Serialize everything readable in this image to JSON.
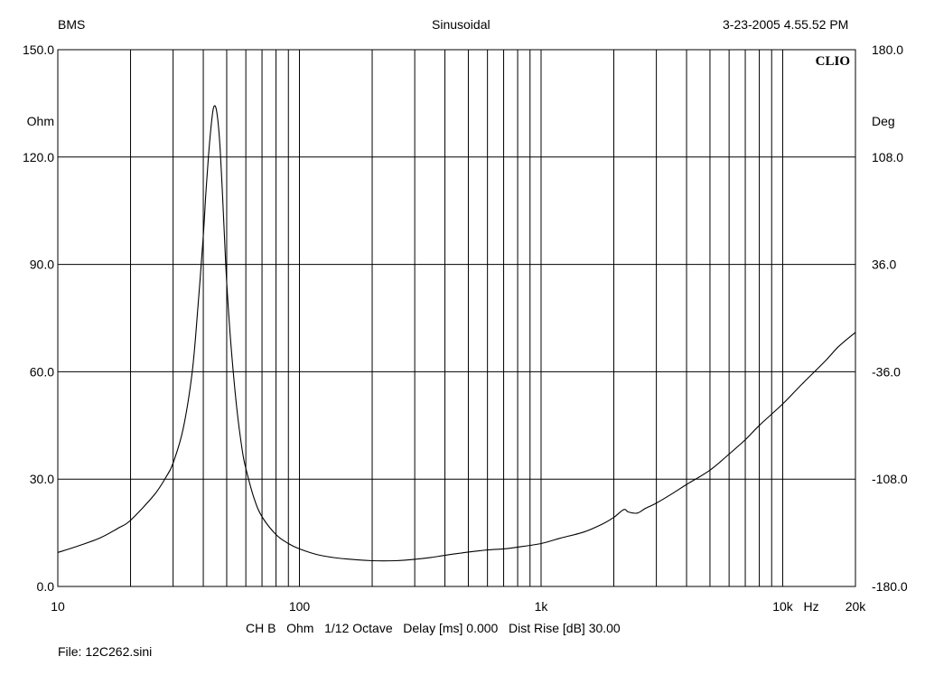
{
  "header": {
    "left": "BMS",
    "center": "Sinusoidal",
    "right": "3-23-2005 4.55.52 PM"
  },
  "footer": {
    "settings": "CH B   Ohm   1/12 Octave   Delay [ms] 0.000   Dist Rise [dB] 30.00",
    "file": "File: 12C262.sini"
  },
  "chart_data": {
    "type": "line",
    "brand": "CLIO",
    "xscale": "log",
    "xlim": [
      10,
      20000
    ],
    "xlabel": "Hz",
    "xticks": [
      {
        "value": 10,
        "label": "10"
      },
      {
        "value": 100,
        "label": "100"
      },
      {
        "value": 1000,
        "label": "1k"
      },
      {
        "value": 10000,
        "label": "10k"
      },
      {
        "value": 20000,
        "label": "20k"
      }
    ],
    "ylim": [
      0,
      150
    ],
    "ylabel": "Ohm",
    "yticks": [
      "0.0",
      "30.0",
      "60.0",
      "90.0",
      "120.0",
      "150.0"
    ],
    "y2lim": [
      -180,
      180
    ],
    "y2label": "Deg",
    "y2ticks": [
      "-180.0",
      "-108.0",
      "-36.0",
      "36.0",
      "108.0",
      "180.0"
    ],
    "grid": true,
    "series": [
      {
        "color": "#000000",
        "x": [
          10,
          12,
          15,
          18,
          20,
          25,
          28,
          30,
          33,
          36,
          38,
          40,
          41,
          42,
          43,
          44,
          45,
          46,
          47,
          48,
          49,
          50,
          52,
          55,
          58,
          60,
          65,
          70,
          80,
          90,
          100,
          120,
          150,
          200,
          250,
          300,
          350,
          400,
          500,
          600,
          700,
          800,
          1000,
          1200,
          1500,
          1800,
          2000,
          2200,
          2300,
          2500,
          2700,
          3000,
          3500,
          4000,
          5000,
          6000,
          7000,
          8000,
          10000,
          12000,
          15000,
          17000,
          20000
        ],
        "values": [
          9.5,
          11.2,
          13.6,
          16.5,
          18.5,
          25.5,
          30.5,
          34.5,
          44,
          60,
          78,
          98,
          110,
          120,
          128,
          133.5,
          134,
          130,
          122,
          110,
          97,
          85,
          68,
          50,
          38,
          33,
          24.5,
          19.5,
          14.5,
          12,
          10.5,
          8.8,
          7.8,
          7.2,
          7.2,
          7.6,
          8.1,
          8.7,
          9.6,
          10.2,
          10.5,
          11,
          12,
          13.5,
          15.2,
          17.5,
          19.3,
          21.5,
          20.8,
          20.5,
          21.8,
          23.3,
          26,
          28.5,
          32.5,
          37,
          41,
          45,
          51,
          56.5,
          63,
          67,
          71
        ]
      }
    ]
  }
}
